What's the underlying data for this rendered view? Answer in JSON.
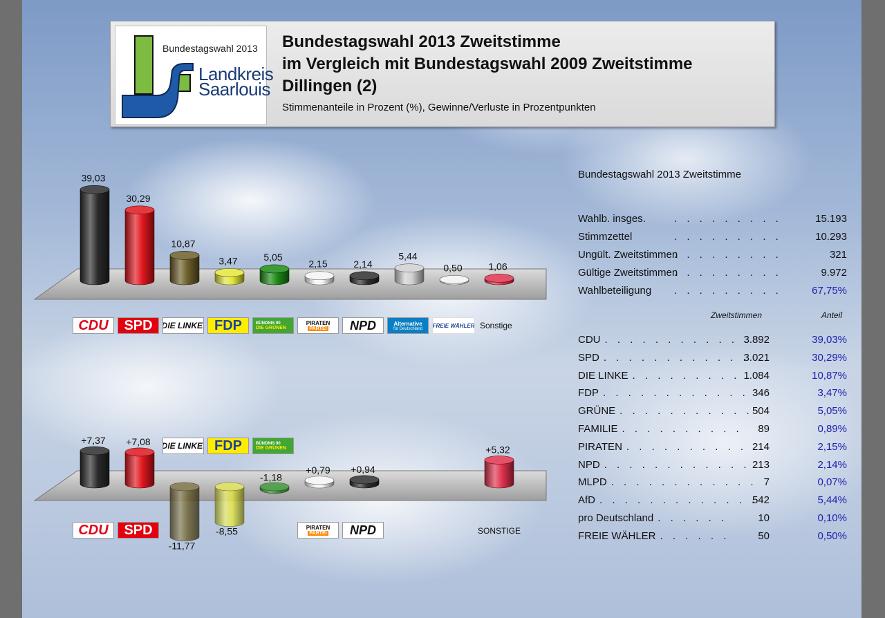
{
  "header": {
    "logo_year": "Bundestagswahl 2013",
    "logo_name_1": "Landkreis",
    "logo_name_2": "Saarlouis",
    "title_1": "Bundestagswahl 2013 Zweitstimme",
    "title_2": "im Vergleich mit Bundestagswahl 2009 Zweitstimme",
    "title_3": "Dillingen (2)",
    "subtitle": "Stimmenanteile in Prozent (%), Gewinne/Verluste in Prozentpunkten"
  },
  "colors": {
    "CDU": "#2b2b2b",
    "SPD": "#e0161e",
    "LINKE": "#6d5f2a",
    "FDP": "#e4e63a",
    "GRUENE": "#1c8a14",
    "PIRATEN": "#f4f4f4",
    "NPD": "#2e2e2e",
    "AFD": "#d0d0d0",
    "FW": "#f2f2f2",
    "SONSTIGE": "#e0324e",
    "accent_pct": "#1f1fb0"
  },
  "chart_data": [
    {
      "type": "bar",
      "categories": [
        "CDU",
        "SPD",
        "DIE LINKE.",
        "FDP",
        "BÜNDNIS 90 DIE GRÜNEN",
        "PIRATEN PARTEI",
        "NPD",
        "Alternative für Deutschland",
        "FREIE WÄHLER",
        "Sonstige"
      ],
      "values": [
        39.03,
        30.29,
        10.87,
        3.47,
        5.05,
        2.15,
        2.14,
        5.44,
        0.5,
        1.06
      ],
      "labels": [
        "39,03",
        "30,29",
        "10,87",
        "3,47",
        "5,05",
        "2,15",
        "2,14",
        "5,44",
        "0,50",
        "1,06"
      ],
      "ylim": [
        0,
        40
      ],
      "grid": false
    },
    {
      "type": "bar",
      "categories": [
        "CDU",
        "SPD",
        "DIE LINKE.",
        "FDP",
        "BÜNDNIS 90 DIE GRÜNEN",
        "PIRATEN PARTEI",
        "NPD",
        "SONSTIGE"
      ],
      "values": [
        7.37,
        7.08,
        -11.77,
        -8.55,
        -1.18,
        0.79,
        0.94,
        5.32
      ],
      "labels": [
        "+7,37",
        "+7,08",
        "-11,77",
        "-8,55",
        "-1,18",
        "+0,79",
        "+0,94",
        "+5,32"
      ],
      "ylim": [
        -12,
        8
      ],
      "grid": false
    }
  ],
  "logos": {
    "cdu": "CDU",
    "spd": "SPD",
    "linke": "DIE LINKE.",
    "fdp": "FDP",
    "gruene_1": "BÜNDNIS 90",
    "gruene_2": "DIE GRÜNEN",
    "piraten_1": "PIRATEN",
    "piraten_2": "PARTEI",
    "npd": "NPD",
    "afd_1": "Alternative",
    "afd_2": "für Deutschland",
    "fw": "FREIE WÄHLER",
    "sonstige_top": "Sonstige",
    "sonstige_bottom": "SONSTIGE"
  },
  "table": {
    "title": "Bundestagswahl 2013 Zweitstimme",
    "summary": [
      {
        "label": "Wahlb. insges.",
        "value": "15.193"
      },
      {
        "label": "Stimmzettel",
        "value": "10.293"
      },
      {
        "label": "Ungült. Zweitstimmen",
        "value": "321"
      },
      {
        "label": "Gültige Zweitstimmen",
        "value": "9.972"
      },
      {
        "label": "Wahlbeteiligung",
        "value": "67,75%"
      }
    ],
    "col_votes": "Zweitstimmen",
    "col_share": "Anteil",
    "rows": [
      {
        "party": "CDU",
        "votes": "3.892",
        "share": "39,03%"
      },
      {
        "party": "SPD",
        "votes": "3.021",
        "share": "30,29%"
      },
      {
        "party": "DIE LINKE",
        "votes": "1.084",
        "share": "10,87%"
      },
      {
        "party": "FDP",
        "votes": "346",
        "share": "3,47%"
      },
      {
        "party": "GRÜNE",
        "votes": "504",
        "share": "5,05%"
      },
      {
        "party": "FAMILIE",
        "votes": "89",
        "share": "0,89%"
      },
      {
        "party": "PIRATEN",
        "votes": "214",
        "share": "2,15%"
      },
      {
        "party": "NPD",
        "votes": "213",
        "share": "2,14%"
      },
      {
        "party": "MLPD",
        "votes": "7",
        "share": "0,07%"
      },
      {
        "party": "AfD",
        "votes": "542",
        "share": "5,44%"
      },
      {
        "party": "pro Deutschland",
        "votes": "10",
        "share": "0,10%"
      },
      {
        "party": "FREIE WÄHLER",
        "votes": "50",
        "share": "0,50%"
      }
    ]
  }
}
